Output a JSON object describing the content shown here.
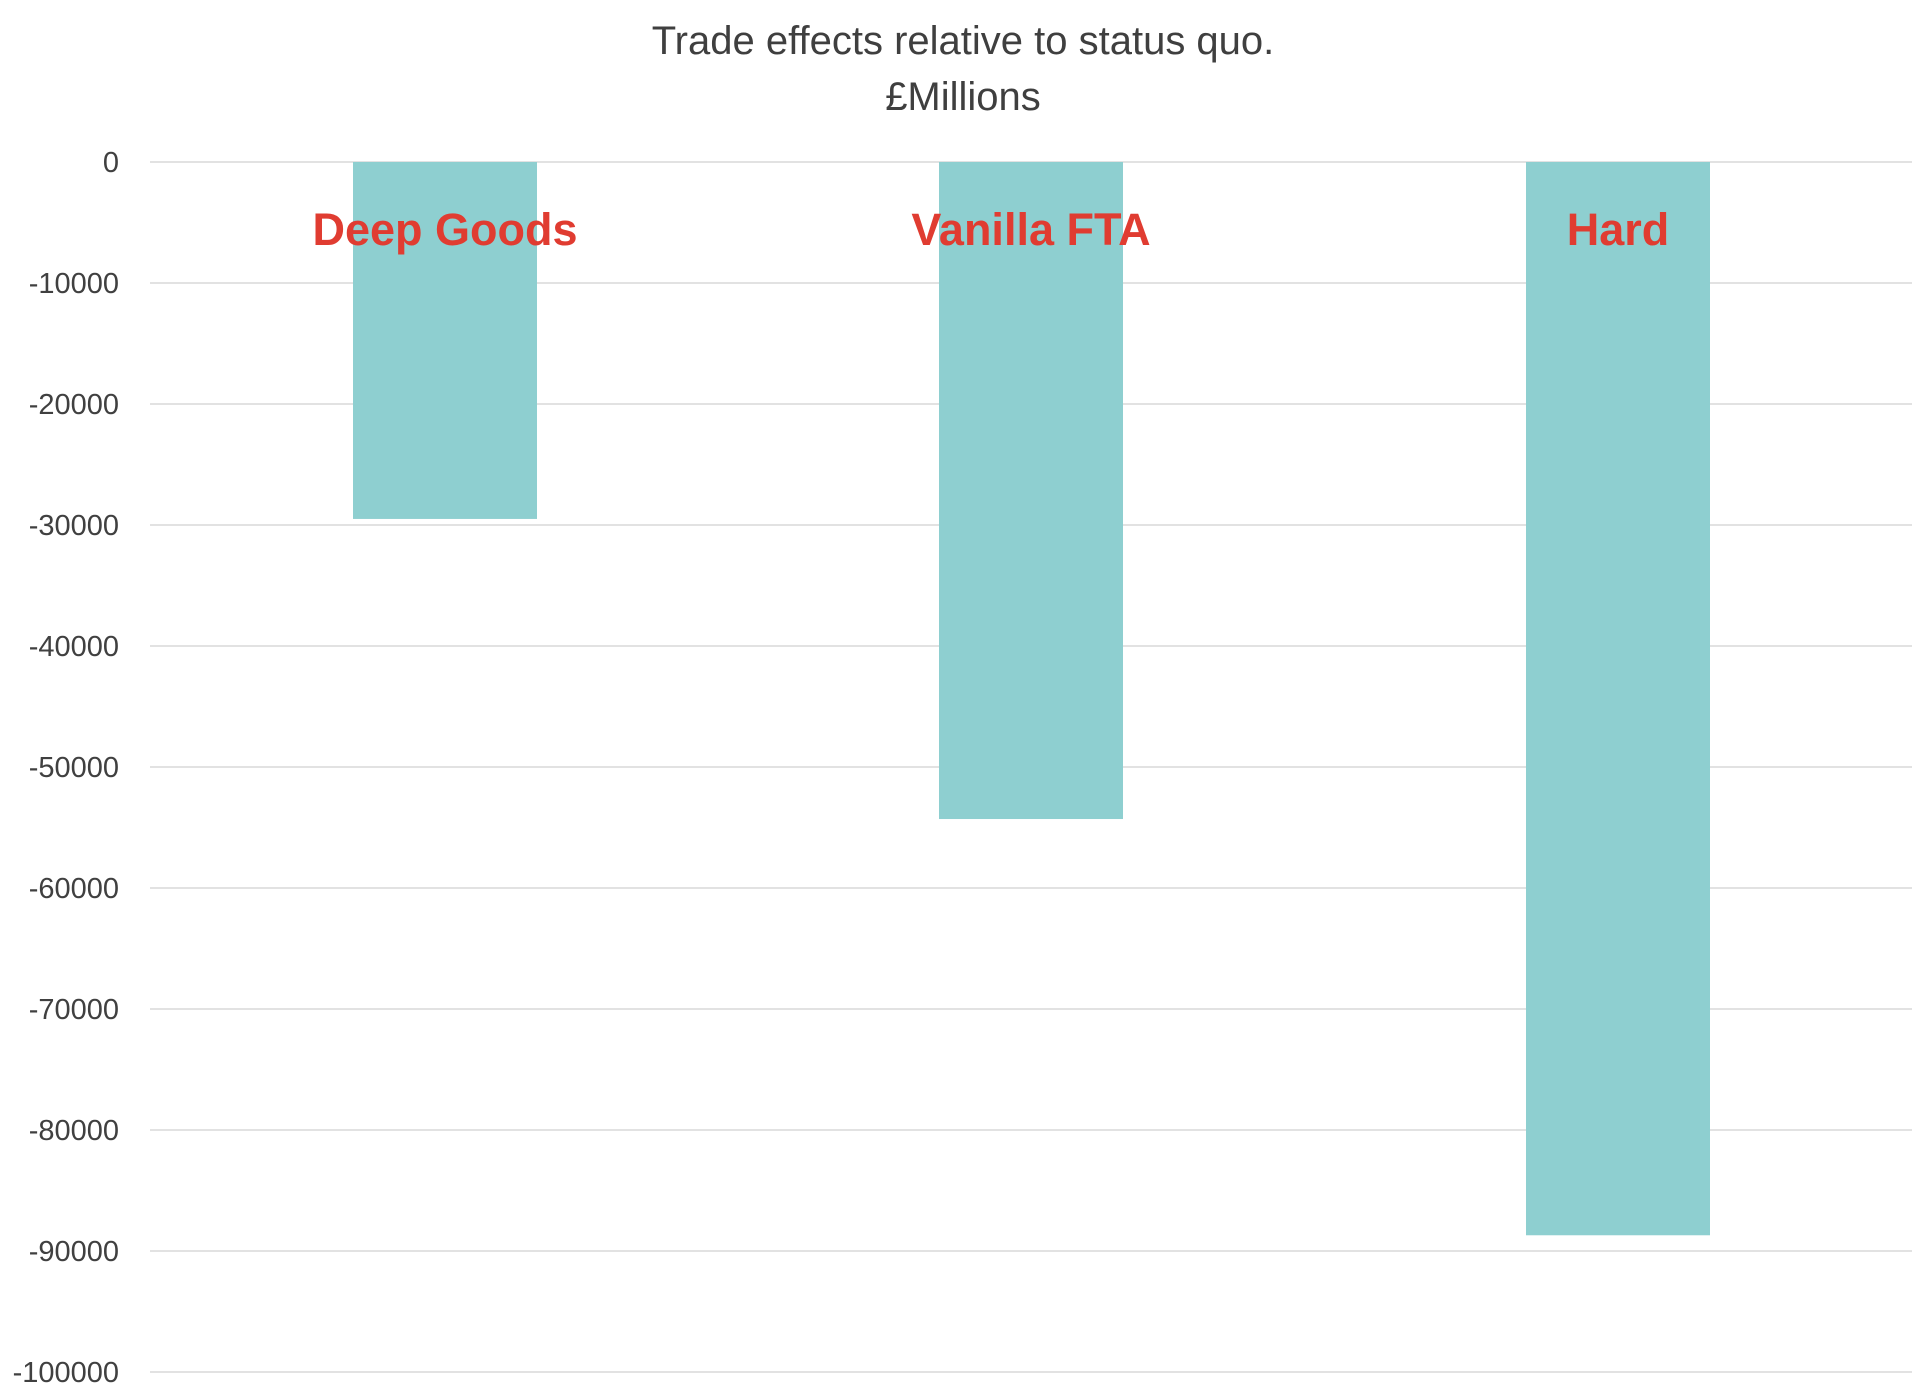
{
  "chart_data": {
    "type": "bar",
    "title": "Trade effects relative to status quo.",
    "subtitle": "£Millions",
    "xlabel": "",
    "ylabel": "",
    "categories": [
      "Deep Goods",
      "Vanilla FTA",
      "Hard"
    ],
    "values": [
      -29500,
      -54300,
      -88700
    ],
    "ylim": [
      -100000,
      0
    ],
    "yticks": [
      0,
      -10000,
      -20000,
      -30000,
      -40000,
      -50000,
      -60000,
      -70000,
      -80000,
      -90000,
      -100000
    ],
    "ytick_labels": [
      "0",
      "-10000",
      "-20000",
      "-30000",
      "-40000",
      "-50000",
      "-60000",
      "-70000",
      "-80000",
      "-90000",
      "-100000"
    ],
    "grid": true,
    "legend": "none",
    "bar_color": "#8ecfd0",
    "label_color": "#e03c31",
    "gridline_color": "#d9d9d9",
    "tick_label_color": "#404040",
    "title_color": "#3f3f3f"
  }
}
